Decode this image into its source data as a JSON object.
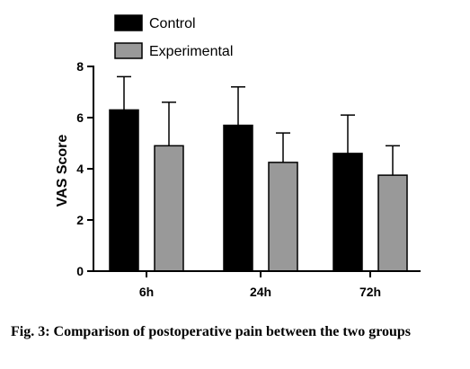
{
  "chart_data": {
    "type": "bar",
    "categories": [
      "6h",
      "24h",
      "72h"
    ],
    "series": [
      {
        "name": "Control",
        "values": [
          6.3,
          5.7,
          4.6
        ],
        "errors": [
          1.3,
          1.5,
          1.5
        ],
        "color": "#000000"
      },
      {
        "name": "Experimental",
        "values": [
          4.9,
          4.25,
          3.75
        ],
        "errors": [
          1.7,
          1.15,
          1.15
        ],
        "color": "#999999"
      }
    ],
    "ylabel": "VAS Score",
    "xlabel": "",
    "ylim": [
      0,
      8
    ],
    "yticks": [
      0,
      2,
      4,
      6,
      8
    ],
    "error_bars": "upper",
    "legend_position": "top-left",
    "grid": false
  },
  "caption": {
    "text": "Fig. 3: Comparison of postoperative pain between the two groups"
  }
}
